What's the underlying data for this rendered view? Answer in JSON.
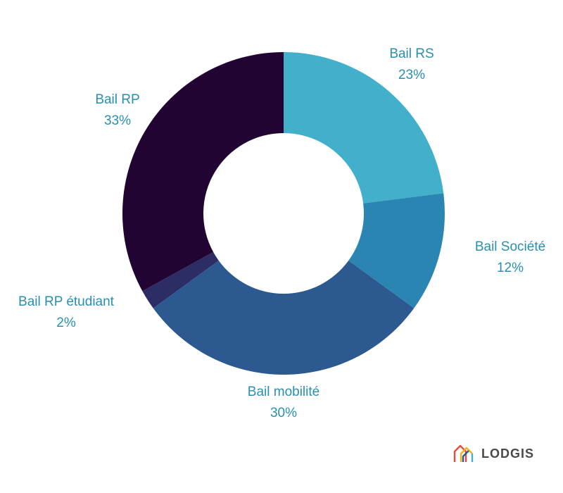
{
  "chart_data": {
    "type": "pie",
    "donut": true,
    "title": "",
    "slices": [
      {
        "label": "Bail RS",
        "value": 23,
        "value_label": "23%",
        "color": "#42afcb"
      },
      {
        "label": "Bail Société",
        "value": 12,
        "value_label": "12%",
        "color": "#2b85b3"
      },
      {
        "label": "Bail mobilité",
        "value": 30,
        "value_label": "30%",
        "color": "#2c598f"
      },
      {
        "label": "Bail RP étudiant",
        "value": 2,
        "value_label": "2%",
        "color": "#2d2d66"
      },
      {
        "label": "Bail RP",
        "value": 33,
        "value_label": "33%",
        "color": "#220433"
      }
    ],
    "label_color": "#2a8fae"
  },
  "brand": {
    "name": "LODGIS",
    "logo_icon": "house-outline-icon"
  }
}
